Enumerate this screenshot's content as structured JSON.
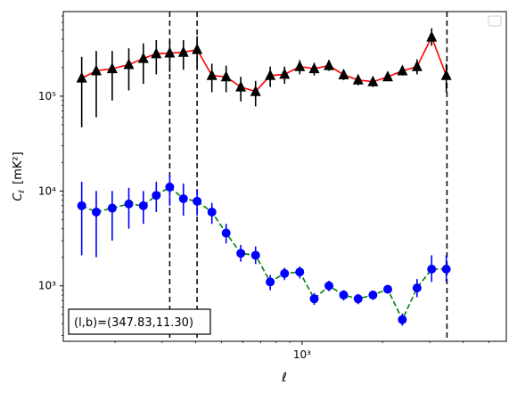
{
  "chart_data": {
    "type": "scatter",
    "title": "",
    "xlabel": "ℓ",
    "ylabel_main": "C",
    "ylabel_sub": "ℓ",
    "ylabel_units": "[mK²]",
    "xscale": "log",
    "yscale": "log",
    "xlim": [
      128,
      5800
    ],
    "ylim": [
      260,
      780000
    ],
    "grid": false,
    "legend": "top-right (empty)",
    "x_ticklabels": [
      "10³"
    ],
    "y_ticklabels": [
      "10³",
      "10⁴",
      "10⁵"
    ],
    "annotation": "(l,b)=(347.83,11.30)",
    "vlines_x": [
      320,
      405,
      3480
    ],
    "series": [
      {
        "marker": "triangle",
        "color": "#000000",
        "line_color": "#ff0000",
        "line_style": "solid",
        "points": [
          {
            "x": 150,
            "y": 155000,
            "lo": 47000,
            "hi": 260000
          },
          {
            "x": 170,
            "y": 185000,
            "lo": 60000,
            "hi": 300000
          },
          {
            "x": 195,
            "y": 195000,
            "lo": 90000,
            "hi": 300000
          },
          {
            "x": 225,
            "y": 215000,
            "lo": 115000,
            "hi": 320000
          },
          {
            "x": 255,
            "y": 250000,
            "lo": 135000,
            "hi": 360000
          },
          {
            "x": 285,
            "y": 280000,
            "lo": 170000,
            "hi": 390000
          },
          {
            "x": 320,
            "y": 285000,
            "lo": 180000,
            "hi": 390000
          },
          {
            "x": 360,
            "y": 290000,
            "lo": 190000,
            "hi": 390000
          },
          {
            "x": 405,
            "y": 310000,
            "lo": 200000,
            "hi": 430000
          },
          {
            "x": 460,
            "y": 165000,
            "lo": 110000,
            "hi": 220000
          },
          {
            "x": 520,
            "y": 160000,
            "lo": 110000,
            "hi": 210000
          },
          {
            "x": 590,
            "y": 125000,
            "lo": 88000,
            "hi": 160000
          },
          {
            "x": 670,
            "y": 112000,
            "lo": 78000,
            "hi": 145000
          },
          {
            "x": 760,
            "y": 165000,
            "lo": 125000,
            "hi": 205000
          },
          {
            "x": 860,
            "y": 170000,
            "lo": 135000,
            "hi": 205000
          },
          {
            "x": 980,
            "y": 205000,
            "lo": 170000,
            "hi": 240000
          },
          {
            "x": 1110,
            "y": 195000,
            "lo": 165000,
            "hi": 225000
          },
          {
            "x": 1260,
            "y": 210000,
            "lo": 185000,
            "hi": 240000
          },
          {
            "x": 1430,
            "y": 168000,
            "lo": 148000,
            "hi": 188000
          },
          {
            "x": 1620,
            "y": 148000,
            "lo": 130000,
            "hi": 166000
          },
          {
            "x": 1840,
            "y": 142000,
            "lo": 125000,
            "hi": 158000
          },
          {
            "x": 2090,
            "y": 160000,
            "lo": 145000,
            "hi": 175000
          },
          {
            "x": 2370,
            "y": 185000,
            "lo": 165000,
            "hi": 205000
          },
          {
            "x": 2690,
            "y": 205000,
            "lo": 170000,
            "hi": 245000
          },
          {
            "x": 3050,
            "y": 420000,
            "lo": 340000,
            "hi": 520000
          },
          {
            "x": 3460,
            "y": 165000,
            "lo": 110000,
            "hi": 220000
          }
        ]
      },
      {
        "marker": "circle",
        "color": "#0000ff",
        "line_color": "#008000",
        "line_style": "dashed",
        "points": [
          {
            "x": 150,
            "y": 7000,
            "lo": 2100,
            "hi": 12500
          },
          {
            "x": 170,
            "y": 6000,
            "lo": 2000,
            "hi": 10000
          },
          {
            "x": 195,
            "y": 6600,
            "lo": 3000,
            "hi": 10000
          },
          {
            "x": 225,
            "y": 7300,
            "lo": 4000,
            "hi": 10800
          },
          {
            "x": 255,
            "y": 7000,
            "lo": 4500,
            "hi": 10000
          },
          {
            "x": 285,
            "y": 9000,
            "lo": 6000,
            "hi": 12500
          },
          {
            "x": 320,
            "y": 11000,
            "lo": 7000,
            "hi": 15000
          },
          {
            "x": 360,
            "y": 8300,
            "lo": 5500,
            "hi": 12000
          },
          {
            "x": 405,
            "y": 7800,
            "lo": 5500,
            "hi": 10500
          },
          {
            "x": 460,
            "y": 6000,
            "lo": 4500,
            "hi": 7500
          },
          {
            "x": 520,
            "y": 3600,
            "lo": 2800,
            "hi": 4500
          },
          {
            "x": 590,
            "y": 2200,
            "lo": 1800,
            "hi": 2700
          },
          {
            "x": 670,
            "y": 2100,
            "lo": 1700,
            "hi": 2600
          },
          {
            "x": 760,
            "y": 1100,
            "lo": 900,
            "hi": 1300
          },
          {
            "x": 860,
            "y": 1350,
            "lo": 1150,
            "hi": 1550
          },
          {
            "x": 980,
            "y": 1400,
            "lo": 1200,
            "hi": 1600
          },
          {
            "x": 1110,
            "y": 730,
            "lo": 630,
            "hi": 840
          },
          {
            "x": 1260,
            "y": 1000,
            "lo": 880,
            "hi": 1130
          },
          {
            "x": 1430,
            "y": 800,
            "lo": 700,
            "hi": 900
          },
          {
            "x": 1620,
            "y": 730,
            "lo": 640,
            "hi": 820
          },
          {
            "x": 1840,
            "y": 800,
            "lo": 710,
            "hi": 890
          },
          {
            "x": 2090,
            "y": 920,
            "lo": 830,
            "hi": 1020
          },
          {
            "x": 2370,
            "y": 440,
            "lo": 380,
            "hi": 510
          },
          {
            "x": 2690,
            "y": 950,
            "lo": 760,
            "hi": 1180
          },
          {
            "x": 3050,
            "y": 1500,
            "lo": 1100,
            "hi": 2100
          },
          {
            "x": 3460,
            "y": 1500,
            "lo": 1100,
            "hi": 2100
          }
        ]
      }
    ]
  }
}
